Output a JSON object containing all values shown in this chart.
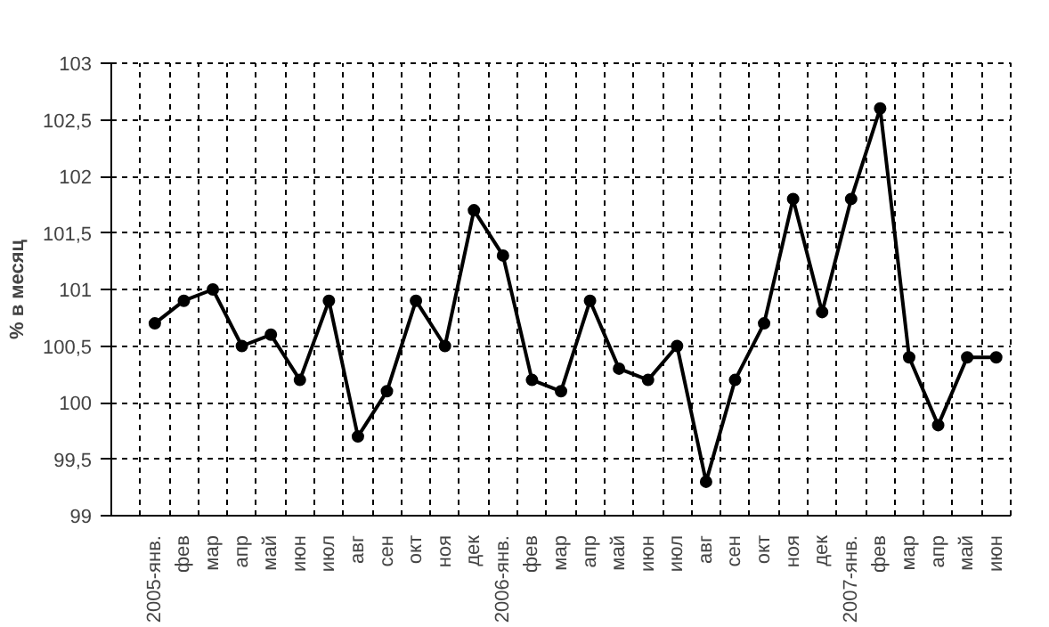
{
  "chart_data": {
    "type": "line",
    "ylabel": "% в месяц",
    "categories": [
      null,
      "2005-янв.",
      "фев",
      "мар",
      "апр",
      "май",
      "июн",
      "июл",
      "авг",
      "сен",
      "окт",
      "ноя",
      "дек",
      "2006-янв.",
      "фев",
      "мар",
      "апр",
      "май",
      "июн",
      "июл",
      "авг",
      "сен",
      "окт",
      "ноя",
      "дек",
      "2007-янв.",
      "фев",
      "мар",
      "апр",
      "май",
      "июн"
    ],
    "series": [
      {
        "color": "#000000",
        "values": [
          null,
          100.7,
          100.9,
          101.0,
          100.5,
          100.6,
          100.2,
          100.9,
          99.7,
          100.1,
          100.9,
          100.5,
          101.7,
          101.3,
          100.2,
          100.1,
          100.9,
          100.3,
          100.2,
          100.5,
          99.3,
          100.2,
          100.7,
          101.8,
          100.8,
          101.8,
          102.6,
          100.4,
          99.8,
          100.4,
          100.4
        ]
      }
    ],
    "ylim": [
      99,
      103
    ],
    "yticks": [
      99,
      {
        "value": 99.5,
        "label": "99,5"
      },
      100,
      {
        "value": 100.5,
        "label": "100,5"
      },
      101,
      {
        "value": 101.5,
        "label": "101,5"
      },
      102,
      {
        "value": 102.5,
        "label": "102,5"
      },
      103
    ],
    "grid": true,
    "marker": "circle",
    "line_style": "solid"
  }
}
